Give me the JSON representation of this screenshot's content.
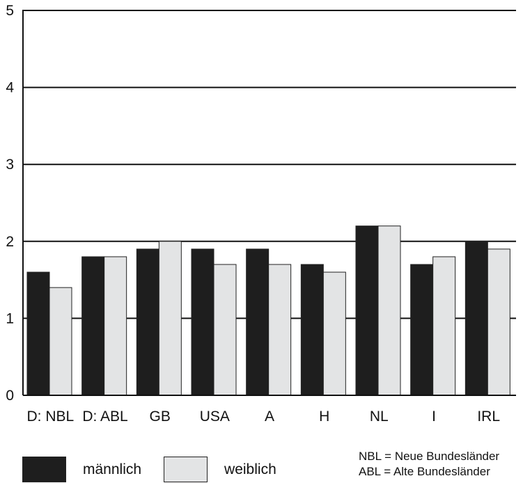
{
  "chart_data": {
    "type": "bar",
    "categories": [
      "D: NBL",
      "D: ABL",
      "GB",
      "USA",
      "A",
      "H",
      "NL",
      "I",
      "IRL"
    ],
    "series": [
      {
        "name": "männlich",
        "values": [
          1.6,
          1.8,
          1.9,
          1.9,
          1.9,
          1.7,
          2.2,
          1.7,
          2.0
        ],
        "color": "#1e1e1e"
      },
      {
        "name": "weiblich",
        "values": [
          1.4,
          1.8,
          2.0,
          1.7,
          1.7,
          1.6,
          2.2,
          1.8,
          1.9
        ],
        "color": "#e3e4e5"
      }
    ],
    "ylim": [
      0,
      5
    ],
    "yticks": [
      "0",
      "1",
      "2",
      "3",
      "4",
      "5"
    ],
    "grid": "horizontal",
    "legend_position": "bottom-left"
  },
  "legend": {
    "items": [
      {
        "label": "männlich",
        "color": "#1e1e1e"
      },
      {
        "label": "weiblich",
        "color": "#e3e4e5"
      }
    ]
  },
  "notes": {
    "nbl": "NBL = Neue Bundesländer",
    "abl": "ABL = Alte Bundesländer"
  }
}
